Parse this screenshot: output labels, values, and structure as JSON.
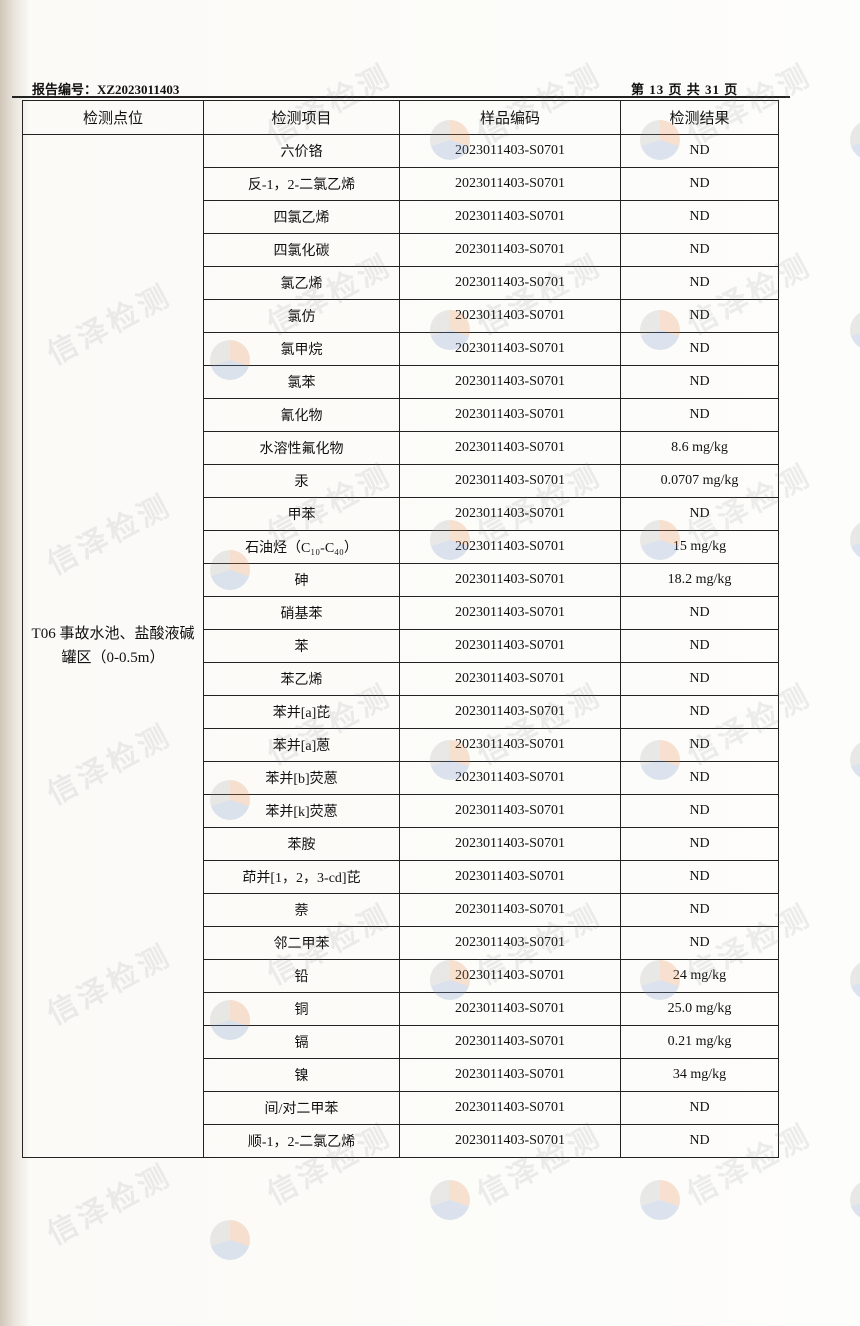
{
  "header": {
    "report_no": "报告编号：XZ2023011403",
    "page_info": "第 13 页 共 31 页"
  },
  "watermark": "信泽检测",
  "table": {
    "columns": [
      "检测点位",
      "检测项目",
      "样品编码",
      "检测结果"
    ],
    "location": "T06 事故水池、盐酸液碱罐区（0-0.5m）",
    "rows": [
      {
        "item": "六价铬",
        "code": "2023011403-S0701",
        "result": "ND"
      },
      {
        "item": "反-1，2-二氯乙烯",
        "code": "2023011403-S0701",
        "result": "ND"
      },
      {
        "item": "四氯乙烯",
        "code": "2023011403-S0701",
        "result": "ND"
      },
      {
        "item": "四氯化碳",
        "code": "2023011403-S0701",
        "result": "ND"
      },
      {
        "item": "氯乙烯",
        "code": "2023011403-S0701",
        "result": "ND"
      },
      {
        "item": "氯仿",
        "code": "2023011403-S0701",
        "result": "ND"
      },
      {
        "item": "氯甲烷",
        "code": "2023011403-S0701",
        "result": "ND"
      },
      {
        "item": "氯苯",
        "code": "2023011403-S0701",
        "result": "ND"
      },
      {
        "item": "氰化物",
        "code": "2023011403-S0701",
        "result": "ND"
      },
      {
        "item": "水溶性氟化物",
        "code": "2023011403-S0701",
        "result": "8.6 mg/kg"
      },
      {
        "item": "汞",
        "code": "2023011403-S0701",
        "result": "0.0707 mg/kg"
      },
      {
        "item": "甲苯",
        "code": "2023011403-S0701",
        "result": "ND"
      },
      {
        "item": "石油烃（C₁₀-C₄₀）",
        "code": "2023011403-S0701",
        "result": "15 mg/kg"
      },
      {
        "item": "砷",
        "code": "2023011403-S0701",
        "result": "18.2 mg/kg"
      },
      {
        "item": "硝基苯",
        "code": "2023011403-S0701",
        "result": "ND"
      },
      {
        "item": "苯",
        "code": "2023011403-S0701",
        "result": "ND"
      },
      {
        "item": "苯乙烯",
        "code": "2023011403-S0701",
        "result": "ND"
      },
      {
        "item": "苯并[a]芘",
        "code": "2023011403-S0701",
        "result": "ND"
      },
      {
        "item": "苯并[a]蒽",
        "code": "2023011403-S0701",
        "result": "ND"
      },
      {
        "item": "苯并[b]荧蒽",
        "code": "2023011403-S0701",
        "result": "ND"
      },
      {
        "item": "苯并[k]荧蒽",
        "code": "2023011403-S0701",
        "result": "ND"
      },
      {
        "item": "苯胺",
        "code": "2023011403-S0701",
        "result": "ND"
      },
      {
        "item": "茚并[1，2，3-cd]芘",
        "code": "2023011403-S0701",
        "result": "ND"
      },
      {
        "item": "萘",
        "code": "2023011403-S0701",
        "result": "ND"
      },
      {
        "item": "邻二甲苯",
        "code": "2023011403-S0701",
        "result": "ND"
      },
      {
        "item": "铅",
        "code": "2023011403-S0701",
        "result": "24 mg/kg"
      },
      {
        "item": "铜",
        "code": "2023011403-S0701",
        "result": "25.0 mg/kg"
      },
      {
        "item": "镉",
        "code": "2023011403-S0701",
        "result": "0.21 mg/kg"
      },
      {
        "item": "镍",
        "code": "2023011403-S0701",
        "result": "34 mg/kg"
      },
      {
        "item": "间/对二甲苯",
        "code": "2023011403-S0701",
        "result": "ND"
      },
      {
        "item": "顺-1，2-二氯乙烯",
        "code": "2023011403-S0701",
        "result": "ND"
      }
    ]
  }
}
